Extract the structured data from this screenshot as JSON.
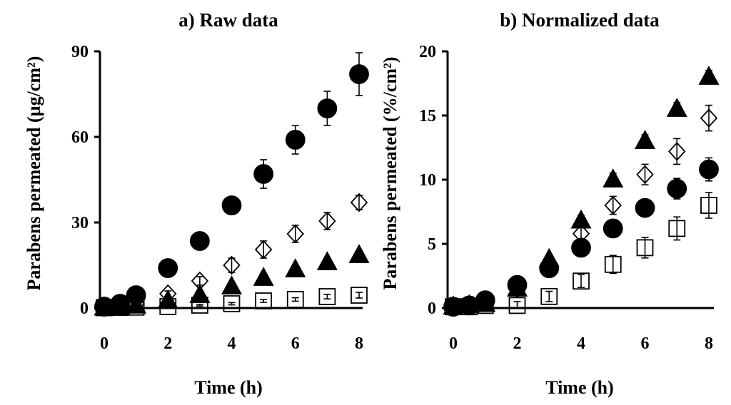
{
  "chart_data": [
    {
      "type": "scatter",
      "title": "a) Raw data",
      "xlabel": "Time (h)",
      "ylabel": "Parabens permeated (µg/cm²)",
      "xlim": [
        -0.2,
        8.3
      ],
      "ylim": [
        0,
        90
      ],
      "xticks": [
        "0",
        "2",
        "4",
        "6",
        "8"
      ],
      "yticks": [
        "0",
        "30",
        "60",
        "90"
      ],
      "series": [
        {
          "name": "filled-circle",
          "marker": "circle",
          "filled": true,
          "x": [
            0,
            0.5,
            1,
            2,
            3,
            4,
            5,
            6,
            7,
            8
          ],
          "y": [
            0.5,
            1.5,
            4.5,
            14,
            23.5,
            36,
            47,
            59,
            70,
            82
          ],
          "err": [
            0.3,
            0.5,
            1,
            1.5,
            1.5,
            3,
            5,
            5,
            6,
            7.5
          ]
        },
        {
          "name": "open-diamond",
          "marker": "diamond",
          "filled": false,
          "x": [
            0,
            0.5,
            1,
            2,
            3,
            4,
            5,
            6,
            7,
            8
          ],
          "y": [
            0.2,
            0.5,
            1.5,
            5,
            9.5,
            15,
            20.5,
            26,
            30.5,
            37
          ],
          "err": [
            0.2,
            0.3,
            0.5,
            1,
            1.5,
            2.5,
            3,
            3,
            3,
            2.5
          ]
        },
        {
          "name": "filled-triangle",
          "marker": "triangle",
          "filled": true,
          "x": [
            0,
            0.5,
            1,
            2,
            3,
            4,
            5,
            6,
            7,
            8
          ],
          "y": [
            0.1,
            0.3,
            0.8,
            2.5,
            4.5,
            7.5,
            10.5,
            13.5,
            16,
            18.5
          ],
          "err": [
            0.1,
            0.2,
            0.3,
            0.5,
            0.5,
            0.5,
            0.8,
            0.8,
            0.8,
            0.8
          ]
        },
        {
          "name": "open-square",
          "marker": "square",
          "filled": false,
          "x": [
            0,
            0.5,
            1,
            2,
            3,
            4,
            5,
            6,
            7,
            8
          ],
          "y": [
            0.1,
            0.2,
            0.3,
            0.5,
            1,
            1.5,
            2.5,
            3,
            4,
            4.5
          ],
          "err": [
            0.1,
            0.1,
            0.1,
            0.2,
            0.3,
            0.4,
            0.5,
            0.6,
            0.8,
            1
          ]
        }
      ]
    },
    {
      "type": "scatter",
      "title": "b) Normalized data",
      "xlabel": "Time (h)",
      "ylabel": "Parabens permeated (%/cm²)",
      "xlim": [
        -0.2,
        8.3
      ],
      "ylim": [
        0,
        20
      ],
      "xticks": [
        "0",
        "2",
        "4",
        "6",
        "8"
      ],
      "yticks": [
        "0",
        "5",
        "10",
        "15",
        "20"
      ],
      "series": [
        {
          "name": "filled-triangle",
          "marker": "triangle",
          "filled": true,
          "x": [
            0,
            0.5,
            1,
            2,
            3,
            4,
            5,
            6,
            7,
            8
          ],
          "y": [
            0.1,
            0.2,
            0.3,
            1.5,
            3.8,
            6.8,
            10,
            13,
            15.5,
            18
          ],
          "err": [
            0.1,
            0.1,
            0.1,
            0.3,
            0.3,
            0.4,
            0.5,
            0.5,
            0.5,
            0.5
          ]
        },
        {
          "name": "open-diamond",
          "marker": "diamond",
          "filled": false,
          "x": [
            0,
            0.5,
            1,
            2,
            3,
            4,
            5,
            6,
            7,
            8
          ],
          "y": [
            0.1,
            0.2,
            0.4,
            1.5,
            3.2,
            5.8,
            8,
            10.4,
            12.2,
            14.8
          ],
          "err": [
            0.1,
            0.1,
            0.1,
            0.3,
            0.5,
            0.6,
            0.7,
            0.8,
            1,
            1
          ]
        },
        {
          "name": "filled-circle",
          "marker": "circle",
          "filled": true,
          "x": [
            0,
            0.5,
            1,
            2,
            3,
            4,
            5,
            6,
            7,
            8
          ],
          "y": [
            0.1,
            0.2,
            0.6,
            1.8,
            3.1,
            4.7,
            6.2,
            7.8,
            9.3,
            10.8
          ],
          "err": [
            0.1,
            0.1,
            0.2,
            0.3,
            0.3,
            0.4,
            0.5,
            0.6,
            0.8,
            0.9
          ]
        },
        {
          "name": "open-square",
          "marker": "square",
          "filled": false,
          "x": [
            0,
            0.5,
            1,
            2,
            3,
            4,
            5,
            6,
            7,
            8
          ],
          "y": [
            0.1,
            0.1,
            0.2,
            0.2,
            0.9,
            2.1,
            3.4,
            4.7,
            6.2,
            8
          ],
          "err": [
            0.1,
            0.1,
            0.1,
            0.3,
            0.4,
            0.5,
            0.7,
            0.8,
            0.9,
            1
          ]
        }
      ]
    }
  ]
}
